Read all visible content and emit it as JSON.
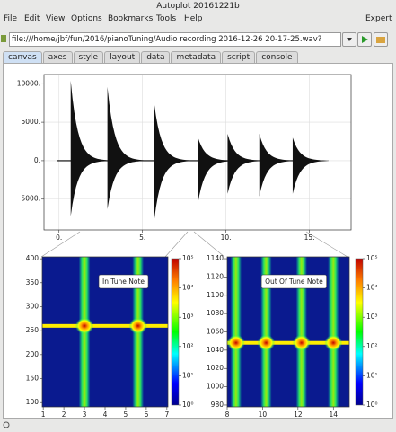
{
  "window": {
    "title": "Autoplot 20161221b"
  },
  "menu": [
    "File",
    "Edit",
    "View",
    "Options",
    "Bookmarks",
    "Tools",
    "Help"
  ],
  "expert": "Expert",
  "address": "file:///home/jbf/fun/2016/pianoTuning/Audio recording 2016-12-26 20-17-25.wav?",
  "tabs": [
    "canvas",
    "axes",
    "style",
    "layout",
    "data",
    "metadata",
    "script",
    "console"
  ],
  "plots": [
    {
      "type": "waveform",
      "xlim": [
        -0.9,
        17.5
      ],
      "ylim": [
        -9000,
        11200
      ],
      "xticks": [
        {
          "value": 0,
          "label": "0."
        },
        {
          "value": 5,
          "label": "5."
        },
        {
          "value": 10,
          "label": "10."
        },
        {
          "value": 15,
          "label": "15."
        }
      ],
      "yticks": [
        {
          "value": 10000,
          "label": "10000."
        },
        {
          "value": 5000,
          "label": "5000."
        },
        {
          "value": 0,
          "label": "0."
        },
        {
          "value": -5000,
          "label": "5000."
        }
      ],
      "onsets": [
        0.7,
        2.9,
        5.7,
        8.3,
        10.1,
        12.0,
        14.0
      ],
      "peaks": [
        10400,
        9600,
        7500,
        3200,
        3500,
        3500,
        3000
      ],
      "troughs": [
        -7200,
        -6300,
        -7800,
        -5800,
        -4300,
        -4650,
        -4300
      ]
    },
    {
      "type": "spectrogram",
      "annotation": "In Tune Note",
      "xlim": [
        0.95,
        7.05
      ],
      "ylim": [
        91,
        404
      ],
      "xticks": [
        1,
        2,
        3,
        4,
        5,
        6,
        7
      ],
      "yticks": [
        100,
        150,
        200,
        250,
        300,
        350,
        400
      ],
      "zticks": [
        {
          "value": 1,
          "label": "10⁰"
        },
        {
          "value": 10,
          "label": "10¹"
        },
        {
          "value": 100,
          "label": "10²"
        },
        {
          "value": 1000,
          "label": "10³"
        },
        {
          "value": 10000,
          "label": "10⁴"
        },
        {
          "value": 100000,
          "label": "10⁵"
        }
      ],
      "zlim": [
        1,
        100000
      ],
      "notes": [
        3.0,
        5.6
      ],
      "pitch": 260
    },
    {
      "type": "spectrogram",
      "annotation": "Out Of Tune Note",
      "xlim": [
        8,
        14.9
      ],
      "ylim": [
        978,
        1142
      ],
      "xticks": [
        8,
        10,
        12,
        14
      ],
      "yticks": [
        980,
        1000,
        1020,
        1040,
        1060,
        1080,
        1100,
        1120,
        1140
      ],
      "zticks": [
        {
          "value": 1,
          "label": "10⁰"
        },
        {
          "value": 10,
          "label": "10¹"
        },
        {
          "value": 100,
          "label": "10²"
        },
        {
          "value": 1000,
          "label": "10³"
        },
        {
          "value": 10000,
          "label": "10⁴"
        },
        {
          "value": 100000,
          "label": "10⁵"
        }
      ],
      "zlim": [
        1,
        100000
      ],
      "notes": [
        8.5,
        10.2,
        12.2,
        14.0
      ],
      "pitch": 1048
    }
  ]
}
